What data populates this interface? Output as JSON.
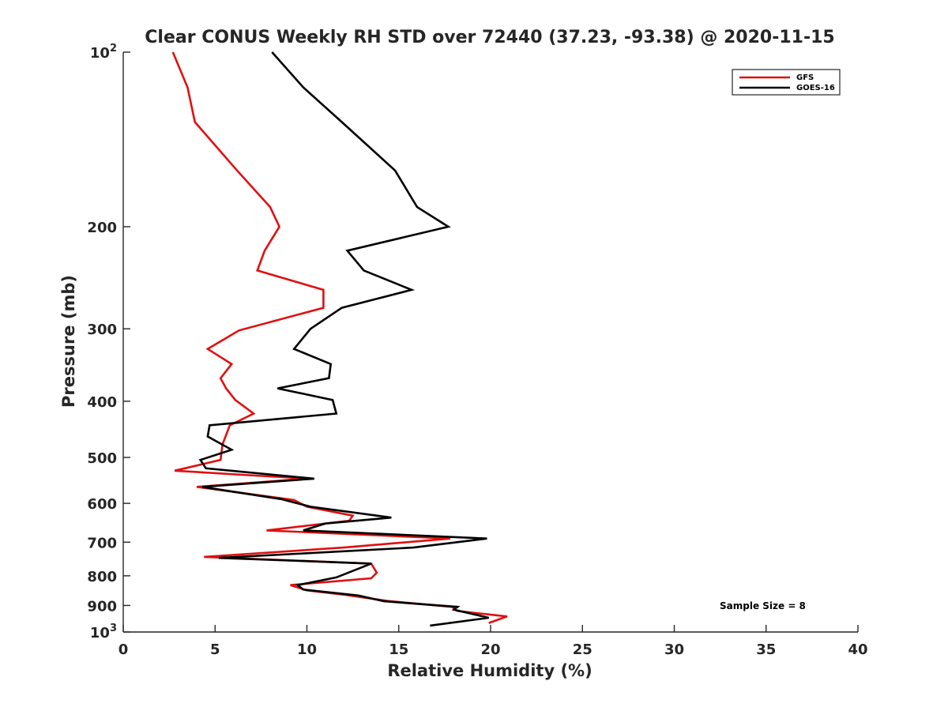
{
  "chart_data": {
    "type": "line",
    "title": "Clear CONUS Weekly RH STD over 72440 (37.23, -93.38) @ 2020-11-15",
    "xlabel": "Relative Humidity (%)",
    "ylabel": "Pressure (mb)",
    "xlim": [
      0,
      40
    ],
    "ylim": [
      100,
      1000
    ],
    "yscale": "log",
    "y_reversed": true,
    "x_ticks": [
      "0",
      "5",
      "10",
      "15",
      "20",
      "25",
      "30",
      "35",
      "40"
    ],
    "y_ticks": [
      {
        "value": 100,
        "base": "10",
        "exp": "2"
      },
      {
        "value": 200,
        "label": "200"
      },
      {
        "value": 300,
        "label": "300"
      },
      {
        "value": 400,
        "label": "400"
      },
      {
        "value": 500,
        "label": "500"
      },
      {
        "value": 600,
        "label": "600"
      },
      {
        "value": 700,
        "label": "700"
      },
      {
        "value": 800,
        "label": "800"
      },
      {
        "value": 900,
        "label": "900"
      },
      {
        "value": 1000,
        "base": "10",
        "exp": "3"
      }
    ],
    "legend_position": "top-right",
    "annotation": "Sample Size = 8",
    "series": [
      {
        "name": "GFS",
        "color": "#e01010",
        "points": [
          [
            2.7,
            100
          ],
          [
            3.5,
            115
          ],
          [
            3.9,
            132
          ],
          [
            6.2,
            160
          ],
          [
            8.0,
            185
          ],
          [
            8.5,
            200
          ],
          [
            7.7,
            220
          ],
          [
            7.3,
            238
          ],
          [
            10.9,
            257
          ],
          [
            10.9,
            276
          ],
          [
            6.3,
            302
          ],
          [
            4.6,
            325
          ],
          [
            5.9,
            345
          ],
          [
            5.3,
            365
          ],
          [
            5.6,
            380
          ],
          [
            6.1,
            398
          ],
          [
            7.1,
            420
          ],
          [
            5.8,
            440
          ],
          [
            5.4,
            475
          ],
          [
            5.3,
            505
          ],
          [
            2.8,
            527
          ],
          [
            10.0,
            544
          ],
          [
            4.0,
            562
          ],
          [
            9.3,
            592
          ],
          [
            10.0,
            608
          ],
          [
            12.5,
            630
          ],
          [
            12.3,
            643
          ],
          [
            7.8,
            668
          ],
          [
            17.8,
            690
          ],
          [
            12.0,
            715
          ],
          [
            4.4,
            742
          ],
          [
            13.5,
            762
          ],
          [
            13.8,
            790
          ],
          [
            13.5,
            808
          ],
          [
            9.1,
            830
          ],
          [
            10.0,
            848
          ],
          [
            12.0,
            862
          ],
          [
            14.4,
            884
          ],
          [
            17.9,
            905
          ],
          [
            18.2,
            920
          ],
          [
            20.9,
            940
          ],
          [
            19.9,
            965
          ]
        ]
      },
      {
        "name": "GOES-16",
        "color": "#000000",
        "points": [
          [
            8.1,
            100
          ],
          [
            9.8,
            115
          ],
          [
            11.9,
            132
          ],
          [
            14.8,
            160
          ],
          [
            16.0,
            185
          ],
          [
            17.7,
            200
          ],
          [
            12.2,
            220
          ],
          [
            13.1,
            238
          ],
          [
            15.7,
            257
          ],
          [
            11.9,
            276
          ],
          [
            10.2,
            300
          ],
          [
            9.3,
            325
          ],
          [
            11.3,
            345
          ],
          [
            11.2,
            365
          ],
          [
            8.4,
            380
          ],
          [
            11.4,
            398
          ],
          [
            11.6,
            420
          ],
          [
            4.7,
            440
          ],
          [
            4.6,
            460
          ],
          [
            5.9,
            485
          ],
          [
            4.2,
            505
          ],
          [
            4.5,
            522
          ],
          [
            10.4,
            544
          ],
          [
            4.3,
            562
          ],
          [
            8.6,
            590
          ],
          [
            10.2,
            608
          ],
          [
            14.6,
            635
          ],
          [
            11.0,
            650
          ],
          [
            9.8,
            668
          ],
          [
            19.8,
            690
          ],
          [
            15.8,
            715
          ],
          [
            5.2,
            745
          ],
          [
            13.5,
            762
          ],
          [
            11.6,
            805
          ],
          [
            9.5,
            830
          ],
          [
            9.8,
            845
          ],
          [
            12.8,
            865
          ],
          [
            14.2,
            885
          ],
          [
            18.2,
            905
          ],
          [
            18.0,
            915
          ],
          [
            19.9,
            945
          ],
          [
            16.7,
            975
          ]
        ]
      }
    ]
  }
}
